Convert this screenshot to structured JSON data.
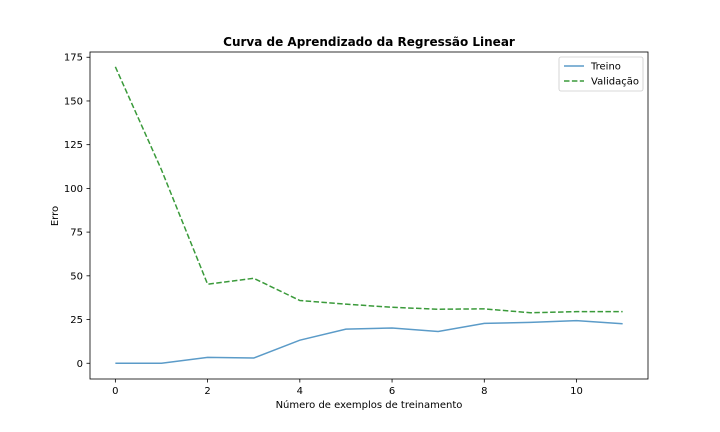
{
  "chart_data": {
    "type": "line",
    "title": "Curva de Aprendizado da Regressão Linear",
    "xlabel": "Número de exemplos de treinamento",
    "ylabel": "Erro",
    "xlim": [
      -0.55,
      11.55
    ],
    "ylim": [
      -9,
      178
    ],
    "xticks": [
      0,
      2,
      4,
      6,
      8,
      10
    ],
    "yticks": [
      0,
      25,
      50,
      75,
      100,
      125,
      150,
      175
    ],
    "grid": false,
    "legend_position": "top-right",
    "x": [
      0,
      1,
      2,
      3,
      4,
      5,
      6,
      7,
      8,
      9,
      10,
      11
    ],
    "series": [
      {
        "name": "Treino",
        "color": "#5b9bc8",
        "style": "solid",
        "values": [
          0,
          0,
          3.4,
          3,
          13.2,
          19.5,
          20.2,
          18.2,
          22.8,
          23.4,
          24.4,
          22.6
        ]
      },
      {
        "name": "Validação",
        "color": "#3a9a3a",
        "style": "dashed",
        "values": [
          169.5,
          110.6,
          45.2,
          48.6,
          35.9,
          33.8,
          32,
          30.9,
          31.1,
          28.9,
          29.5,
          29.5
        ]
      }
    ]
  }
}
